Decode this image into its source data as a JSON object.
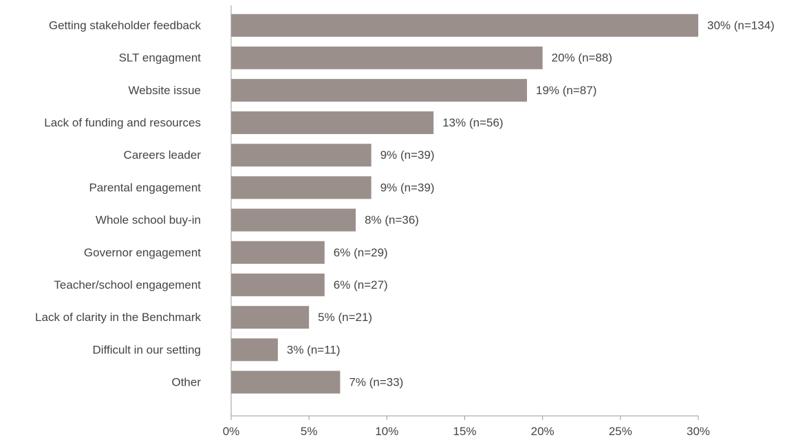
{
  "chart_data": {
    "type": "bar",
    "orientation": "horizontal",
    "categories": [
      "Getting stakeholder feedback",
      "SLT engagment",
      "Website issue",
      "Lack of funding and resources",
      "Careers leader",
      "Parental engagement",
      "Whole school buy-in",
      "Governor engagement",
      "Teacher/school engagement",
      "Lack of clarity in the Benchmark",
      "Difficult in our setting",
      "Other"
    ],
    "values": [
      30,
      20,
      19,
      13,
      9,
      9,
      8,
      6,
      6,
      5,
      3,
      7
    ],
    "data_labels": [
      "30% (n=134)",
      "20% (n=88)",
      "19% (n=87)",
      "13% (n=56)",
      "9% (n=39)",
      "9% (n=39)",
      "8% (n=36)",
      "6% (n=29)",
      "6% (n=27)",
      "5% (n=21)",
      "3% (n=11)",
      "7% (n=33)"
    ],
    "xlim": [
      0,
      30
    ],
    "xticks": [
      0,
      5,
      10,
      15,
      20,
      25,
      30
    ],
    "xtick_labels": [
      "0%",
      "5%",
      "10%",
      "15%",
      "20%",
      "25%",
      "30%"
    ],
    "title": "",
    "xlabel": "",
    "ylabel": "",
    "grid": false,
    "legend": "none",
    "colors": {
      "bar": "#9a8f8b",
      "axis": "#9a9a9a",
      "text": "#444444"
    }
  }
}
